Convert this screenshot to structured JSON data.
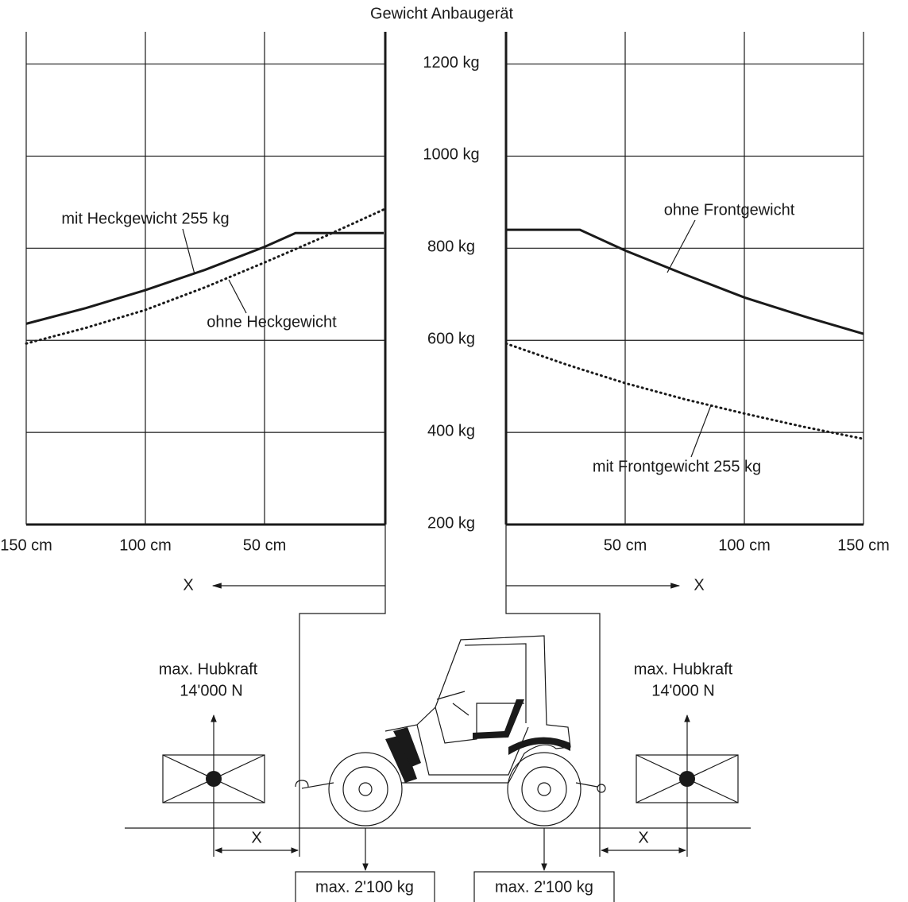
{
  "title": "Gewicht Anbaugerät",
  "chart_data": [
    {
      "type": "line",
      "xlim": [
        150,
        0
      ],
      "ylim": [
        200,
        1270
      ],
      "xticks": [
        {
          "value": 150,
          "label": "150 cm"
        },
        {
          "value": 100,
          "label": "100 cm"
        },
        {
          "value": 50,
          "label": "50 cm"
        }
      ],
      "yticks": [
        {
          "value": 200,
          "label": "200 kg"
        },
        {
          "value": 400,
          "label": "400 kg"
        },
        {
          "value": 600,
          "label": "600 kg"
        },
        {
          "value": 800,
          "label": "800 kg"
        },
        {
          "value": 1000,
          "label": "1000 kg"
        },
        {
          "value": 1200,
          "label": "1200 kg"
        }
      ],
      "grid": true,
      "x_arrow_label": "X",
      "x": [
        150,
        125,
        100,
        75,
        50,
        37,
        25,
        0
      ],
      "series": [
        {
          "name": "mit Heckgewicht 255 kg",
          "color": "#1a1a1a",
          "line_style": "solid",
          "values": [
            636,
            670,
            709,
            753,
            803,
            833,
            833,
            833
          ]
        },
        {
          "name": "ohne Heckgewicht",
          "color": "#1a1a1a",
          "line_style": "dotted",
          "values": [
            593,
            627,
            666,
            715,
            769,
            798,
            825,
            884
          ]
        }
      ]
    },
    {
      "type": "line",
      "xlim": [
        0,
        150
      ],
      "ylim": [
        200,
        1270
      ],
      "xticks": [
        {
          "value": 50,
          "label": "50 cm"
        },
        {
          "value": 100,
          "label": "100 cm"
        },
        {
          "value": 150,
          "label": "150 cm"
        }
      ],
      "yticks": [
        200,
        400,
        600,
        800,
        1000,
        1200
      ],
      "grid": true,
      "x_arrow_label": "X",
      "x": [
        0,
        25,
        31,
        50,
        75,
        100,
        125,
        150
      ],
      "series": [
        {
          "name": "ohne Frontgewicht",
          "color": "#1a1a1a",
          "line_style": "solid",
          "values": [
            840,
            840,
            840,
            795,
            743,
            693,
            652,
            614
          ]
        },
        {
          "name": "mit Frontgewicht 255 kg",
          "color": "#1a1a1a",
          "line_style": "dotted",
          "values": [
            593,
            548,
            538,
            507,
            472,
            441,
            412,
            386
          ]
        }
      ]
    }
  ],
  "rear_load": {
    "label": "max. Hubkraft",
    "force": "14'000 N",
    "distance": "X"
  },
  "front_load": {
    "label": "max. Hubkraft",
    "force": "14'000 N",
    "distance": "X"
  },
  "axle_loads": [
    "max. 2'100 kg",
    "max. 2'100 kg"
  ]
}
